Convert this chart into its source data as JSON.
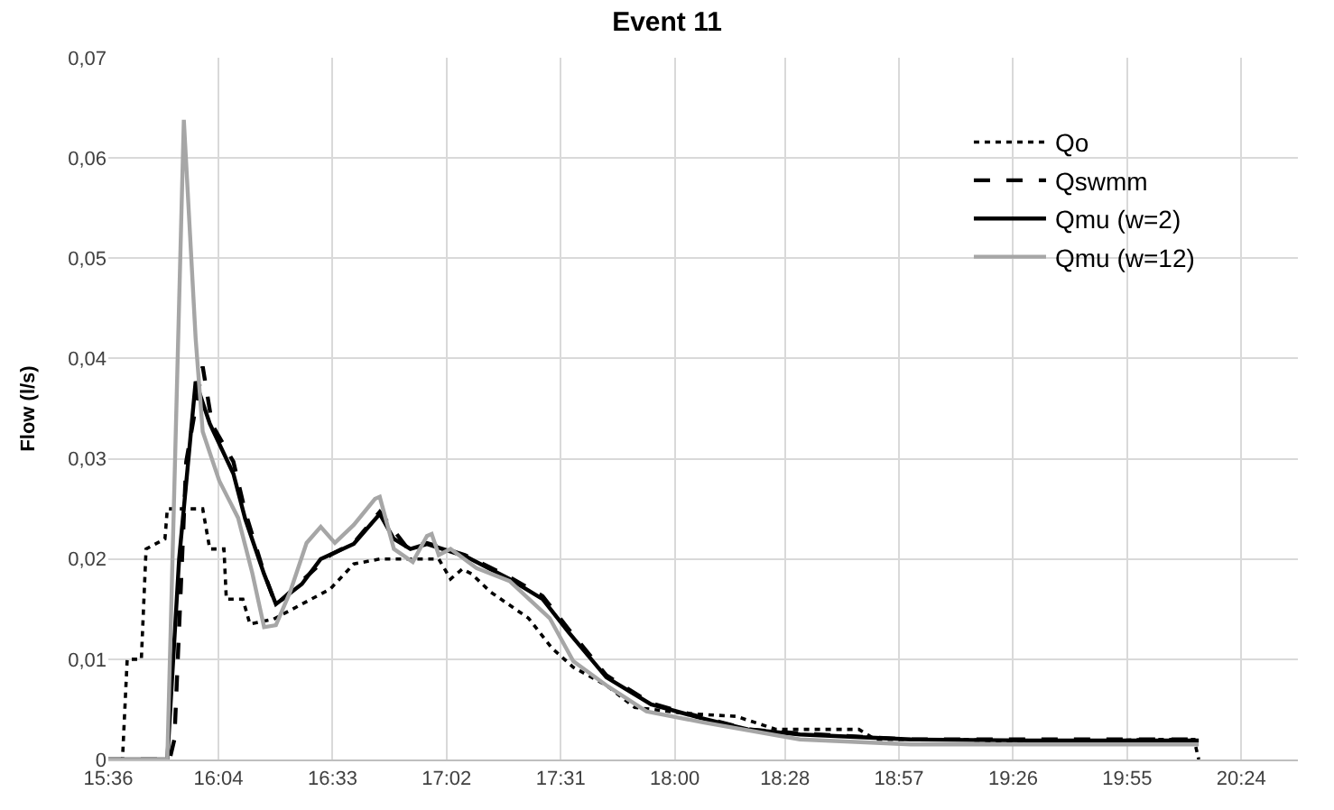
{
  "chart_data": {
    "type": "line",
    "title": "Event 11",
    "ylabel": "Flow (l/s)",
    "xlim": [
      15.6,
      20.64
    ],
    "ylim": [
      0,
      0.07
    ],
    "xticks": [
      {
        "value": 15.6,
        "label": "15:36"
      },
      {
        "value": 16.0667,
        "label": "16:04"
      },
      {
        "value": 16.55,
        "label": "16:33"
      },
      {
        "value": 17.0333,
        "label": "17:02"
      },
      {
        "value": 17.5167,
        "label": "17:31"
      },
      {
        "value": 18.0,
        "label": "18:00"
      },
      {
        "value": 18.4667,
        "label": "18:28"
      },
      {
        "value": 18.95,
        "label": "18:57"
      },
      {
        "value": 19.4333,
        "label": "19:26"
      },
      {
        "value": 19.9167,
        "label": "19:55"
      },
      {
        "value": 20.4,
        "label": "20:24"
      }
    ],
    "yticks": [
      0,
      {
        "value": 0.01,
        "label": "0,01"
      },
      {
        "value": 0.02,
        "label": "0,02"
      },
      {
        "value": 0.03,
        "label": "0,03"
      },
      {
        "value": 0.04,
        "label": "0,04"
      },
      {
        "value": 0.05,
        "label": "0,05"
      },
      {
        "value": 0.06,
        "label": "0,06"
      },
      {
        "value": 0.07,
        "label": "0,07"
      }
    ],
    "grid": true,
    "legend": "top right",
    "marker": "none",
    "series": [
      {
        "name": "Qo",
        "color": "#000000",
        "line_style": "dotted",
        "x": [
          15.6,
          15.66,
          15.68,
          15.74,
          15.76,
          15.84,
          15.85,
          16.0,
          16.03,
          16.09,
          16.1,
          16.17,
          16.2,
          16.3,
          16.54,
          16.64,
          16.75,
          17.0,
          17.05,
          17.1,
          17.14,
          17.22,
          17.38,
          17.48,
          17.57,
          17.71,
          17.83,
          18.04,
          18.26,
          18.43,
          18.67,
          18.78,
          18.85,
          19.2,
          19.6,
          20.0,
          20.2,
          20.22
        ],
        "values": [
          0,
          0,
          0.01,
          0.01,
          0.021,
          0.022,
          0.025,
          0.025,
          0.021,
          0.021,
          0.016,
          0.016,
          0.0135,
          0.014,
          0.017,
          0.0195,
          0.02,
          0.02,
          0.018,
          0.019,
          0.0185,
          0.0167,
          0.0141,
          0.0111,
          0.0092,
          0.0074,
          0.0052,
          0.0046,
          0.0043,
          0.003,
          0.003,
          0.003,
          0.002,
          0.002,
          0.0017,
          0.002,
          0.002,
          0
        ]
      },
      {
        "name": "Qswmm",
        "color": "#000000",
        "line_style": "dashed",
        "x": [
          15.6,
          15.86,
          15.88,
          15.93,
          16.0,
          16.04,
          16.13,
          16.18,
          16.26,
          16.31,
          16.42,
          16.54,
          16.64,
          16.75,
          16.87,
          16.95,
          17.11,
          17.3,
          17.44,
          17.55,
          17.71,
          17.9,
          18.1,
          18.31,
          18.53,
          19.0,
          19.5,
          20.0,
          20.22
        ],
        "values": [
          0,
          0,
          0.002,
          0.0297,
          0.0392,
          0.0334,
          0.0297,
          0.0247,
          0.0186,
          0.0154,
          0.0178,
          0.0204,
          0.0216,
          0.0247,
          0.021,
          0.0216,
          0.0204,
          0.0182,
          0.0163,
          0.013,
          0.0084,
          0.0056,
          0.0043,
          0.003,
          0.0026,
          0.002,
          0.002,
          0.002,
          0.002
        ]
      },
      {
        "name": "Qmu (w=2)",
        "color": "#000000",
        "line_style": "solid",
        "x": [
          15.6,
          15.85,
          15.9,
          15.97,
          16.03,
          16.13,
          16.18,
          16.26,
          16.31,
          16.42,
          16.5,
          16.64,
          16.75,
          16.81,
          16.88,
          16.95,
          17.11,
          17.3,
          17.44,
          17.55,
          17.71,
          17.9,
          18.1,
          18.31,
          18.53,
          19.0,
          19.5,
          20.0,
          20.22
        ],
        "values": [
          0,
          0,
          0.02,
          0.0377,
          0.0335,
          0.0285,
          0.024,
          0.0185,
          0.0155,
          0.0175,
          0.02,
          0.0215,
          0.0245,
          0.022,
          0.021,
          0.0215,
          0.0203,
          0.018,
          0.016,
          0.0127,
          0.0082,
          0.0055,
          0.0042,
          0.003,
          0.0025,
          0.002,
          0.0019,
          0.0019,
          0.0019
        ]
      },
      {
        "name": "Qmu (w=12)",
        "color": "#a6a6a6",
        "line_style": "solid",
        "x": [
          15.6,
          15.85,
          15.92,
          15.97,
          16.0,
          16.07,
          16.15,
          16.21,
          16.26,
          16.31,
          16.37,
          16.44,
          16.5,
          16.56,
          16.64,
          16.73,
          16.75,
          16.81,
          16.89,
          16.95,
          16.97,
          17.0,
          17.05,
          17.16,
          17.3,
          17.47,
          17.57,
          17.71,
          17.88,
          18.12,
          18.53,
          19.0,
          19.5,
          20.0,
          20.22
        ],
        "values": [
          0,
          0,
          0.0638,
          0.042,
          0.0327,
          0.0278,
          0.0241,
          0.0186,
          0.0132,
          0.0134,
          0.0167,
          0.0216,
          0.0232,
          0.0216,
          0.0234,
          0.026,
          0.0262,
          0.021,
          0.0197,
          0.0223,
          0.0225,
          0.0204,
          0.021,
          0.0191,
          0.0178,
          0.0141,
          0.0098,
          0.0074,
          0.0048,
          0.0037,
          0.002,
          0.0015,
          0.0015,
          0.0015,
          0.0015
        ]
      }
    ]
  }
}
